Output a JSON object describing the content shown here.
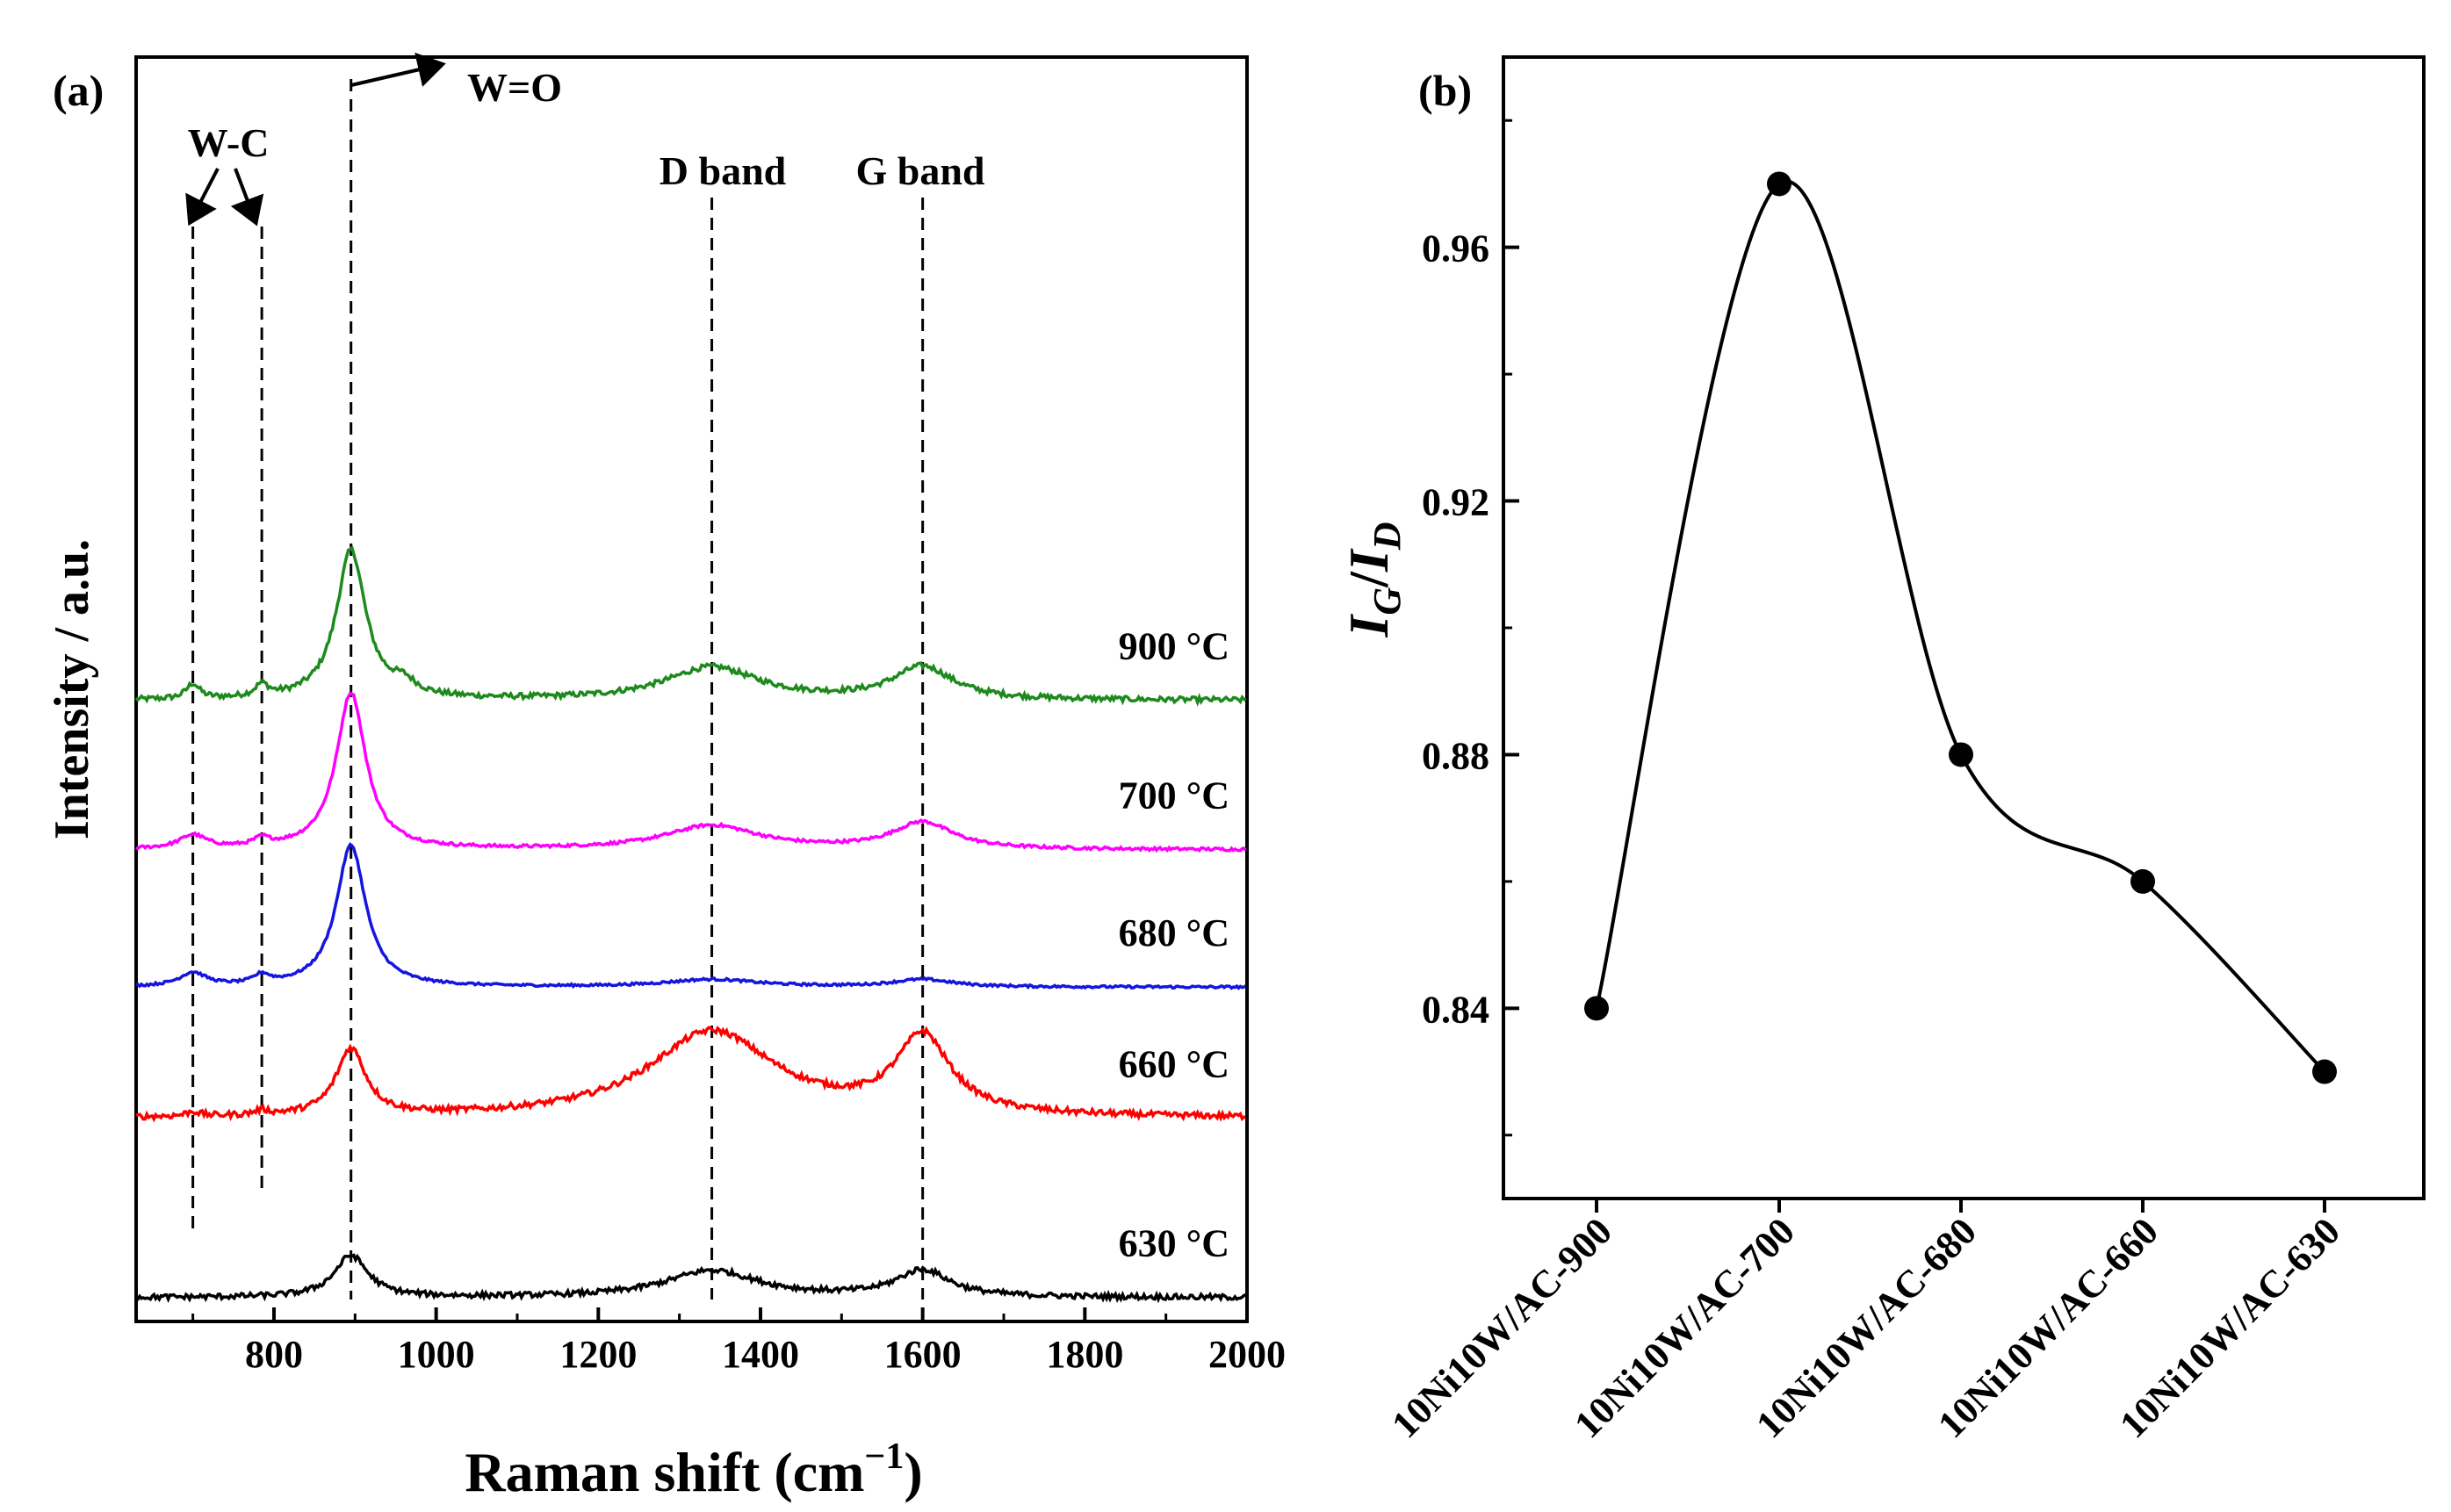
{
  "chart_data": [
    {
      "panel": "(a)",
      "type": "line",
      "xlabel": "Raman shift (cm",
      "xlabel_sup": "−1",
      "xlabel_end": ")",
      "ylabel": "Intensity / a.u.",
      "xlim": [
        630,
        2000
      ],
      "xticks": [
        800,
        1000,
        1200,
        1400,
        1600,
        1800,
        2000
      ],
      "yticks_shown": false,
      "x_peak_positions": [
        700,
        785,
        895,
        1340,
        1600
      ],
      "series": [
        {
          "name": "900 °C",
          "color": "#1e8a1e",
          "offset": 4.0,
          "peaks": [
            [
              700,
              0.1,
              10
            ],
            [
              785,
              0.08,
              10
            ],
            [
              895,
              1.0,
              22
            ],
            [
              960,
              0.08,
              18
            ],
            [
              1340,
              0.22,
              70
            ],
            [
              1600,
              0.22,
              45
            ]
          ],
          "noise": 0.018
        },
        {
          "name": "700 °C",
          "color": "#ff00ff",
          "offset": 3.0,
          "peaks": [
            [
              700,
              0.09,
              20
            ],
            [
              785,
              0.05,
              12
            ],
            [
              895,
              1.05,
              22
            ],
            [
              1340,
              0.16,
              70
            ],
            [
              1600,
              0.18,
              45
            ]
          ],
          "noise": 0.01
        },
        {
          "name": "680 °C",
          "color": "#1515e0",
          "offset": 2.08,
          "peaks": [
            [
              700,
              0.09,
              20
            ],
            [
              785,
              0.06,
              12
            ],
            [
              895,
              0.95,
              22
            ],
            [
              1340,
              0.05,
              70
            ],
            [
              1600,
              0.05,
              45
            ]
          ],
          "noise": 0.008
        },
        {
          "name": "660 °C",
          "color": "#ff0000",
          "offset": 1.2,
          "peaks": [
            [
              700,
              0.03,
              10
            ],
            [
              785,
              0.03,
              10
            ],
            [
              895,
              0.45,
              22
            ],
            [
              1340,
              0.58,
              95
            ],
            [
              1600,
              0.52,
              40
            ]
          ],
          "noise": 0.02
        },
        {
          "name": "630 °C",
          "color": "#000000",
          "offset": 0.0,
          "peaks": [
            [
              895,
              0.28,
              25
            ],
            [
              1340,
              0.18,
              70
            ],
            [
              1600,
              0.18,
              40
            ]
          ],
          "noise": 0.018
        }
      ],
      "annotations": {
        "wc": "W-C",
        "wo": "W=O",
        "dband": "D band",
        "gband": "G band"
      }
    },
    {
      "panel": "(b)",
      "type": "line",
      "ylabel_main1": "I",
      "ylabel_sub1": "G",
      "ylabel_sep": "/",
      "ylabel_main2": "I",
      "ylabel_sub2": "D",
      "categories": [
        "10Ni10W/AC-900",
        "10Ni10W/AC-700",
        "10Ni10W/AC-680",
        "10Ni10W/AC-660",
        "10Ni10W/AC-630"
      ],
      "values": [
        0.84,
        0.97,
        0.88,
        0.86,
        0.83
      ],
      "ylim": [
        0.81,
        0.99
      ],
      "yticks": [
        0.84,
        0.88,
        0.92,
        0.96
      ],
      "ytick_labels": [
        "0.84",
        "0.88",
        "0.92",
        "0.96"
      ],
      "marker": "circle",
      "line_style": "smooth spline",
      "color": "#000000"
    }
  ]
}
